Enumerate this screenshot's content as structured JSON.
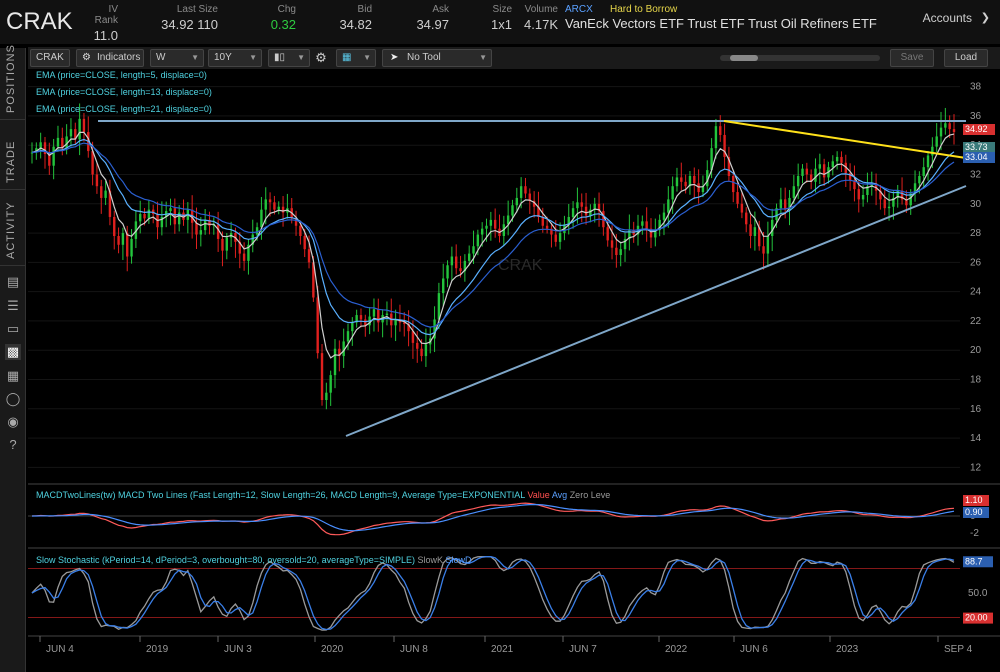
{
  "quote": {
    "symbol": "CRAK",
    "fields": [
      {
        "label": "IV Rank",
        "value": "11.0"
      },
      {
        "label": "Last Size",
        "value": "34.92 110"
      },
      {
        "label": "Chg",
        "value": "0.32"
      },
      {
        "label": "Bid",
        "value": "34.82"
      },
      {
        "label": "Ask",
        "value": "34.97"
      },
      {
        "label": "Size",
        "value": "1x1"
      },
      {
        "label": "Volume",
        "value": "4.17K"
      }
    ],
    "exchange": "ARCX",
    "borrow_status": "Hard to Borrow",
    "description": "VanEck Vectors ETF Trust ETF Trust Oil Refiners ETF",
    "accounts_label": "Accounts"
  },
  "sidebar": {
    "tabs": [
      "POSITIONS",
      "TRADE",
      "ACTIVITY"
    ],
    "icons": [
      "doc-icon",
      "list-icon",
      "tv-icon",
      "chart-icon",
      "grid-icon",
      "gauge-icon",
      "globe-icon",
      "help-icon"
    ]
  },
  "toolbar": {
    "symbol": "CRAK",
    "indicators_label": "Indicators",
    "aggregation": "W",
    "range": "10Y",
    "tool": "No Tool",
    "save_label": "Save",
    "load_label": "Load"
  },
  "studies": {
    "ema": [
      "EMA (price=CLOSE, length=5, displace=0)",
      "EMA (price=CLOSE, length=13, displace=0)",
      "EMA (price=CLOSE, length=21, displace=0)"
    ],
    "macd_title": "MACDTwoLines(tw) MACD Two Lines (Fast Length=12, Slow Length=26, MACD Length=9, Average Type=EXPONENTIAL",
    "macd_value": "Value",
    "macd_avg": "Avg",
    "macd_zero": "Zero Leve",
    "stoch_title": "Slow Stochastic (kPeriod=14, dPeriod=3, overbought=80, oversold=20, averageType=SIMPLE)",
    "stoch_k": "SlowK",
    "stoch_d": "SlowD",
    "watermark": "CRAK"
  },
  "chart_data": {
    "type": "line",
    "price_axis": {
      "ticks": [
        12,
        14,
        16,
        18,
        20,
        22,
        24,
        26,
        28,
        30,
        32,
        34,
        36,
        38
      ],
      "ylim": [
        11,
        39
      ]
    },
    "price_badges": [
      {
        "value": "34.92",
        "color": "#d83030"
      },
      {
        "value": "33.73",
        "color": "#3a7a7a"
      },
      {
        "value": "33.04",
        "color": "#2b5fb0"
      }
    ],
    "macd_axis": {
      "ticks": [
        "0",
        "-2"
      ]
    },
    "macd_badges": [
      {
        "value": "1.10",
        "color": "#d83030"
      },
      {
        "value": "0.90",
        "color": "#2b5fb0"
      }
    ],
    "stoch_axis": {
      "ticks": [
        "50.0"
      ]
    },
    "stoch_badges": [
      {
        "value": "88.7",
        "color": "#2b5fb0"
      },
      {
        "value": "20.00",
        "color": "#d83030"
      }
    ],
    "x_labels": [
      "JUN 4",
      "2019",
      "JUN 3",
      "2020",
      "JUN 8",
      "2021",
      "JUN 7",
      "2022",
      "JUN 6",
      "2023",
      "SEP 4"
    ],
    "weekly_close": [
      33.5,
      33.8,
      34.2,
      33.4,
      32.6,
      33.9,
      34.5,
      33.8,
      34.6,
      35.1,
      34.4,
      35.8,
      34.9,
      33.6,
      32.0,
      31.2,
      30.4,
      30.9,
      29.1,
      27.8,
      27.2,
      28.0,
      26.4,
      27.6,
      28.8,
      29.3,
      29.0,
      29.6,
      29.3,
      28.4,
      29.1,
      29.5,
      29.7,
      28.6,
      29.4,
      28.9,
      29.6,
      28.7,
      27.9,
      28.2,
      28.9,
      28.5,
      28.6,
      27.6,
      26.8,
      27.7,
      28.0,
      27.4,
      26.6,
      26.1,
      27.2,
      27.9,
      28.4,
      29.6,
      30.3,
      30.1,
      29.6,
      29.8,
      29.4,
      29.7,
      29.0,
      28.5,
      27.8,
      26.9,
      26.0,
      23.6,
      19.8,
      16.6,
      17.1,
      18.3,
      20.1,
      19.6,
      20.6,
      21.3,
      21.9,
      22.4,
      22.1,
      21.7,
      22.3,
      22.8,
      21.9,
      22.4,
      22.5,
      21.7,
      22.1,
      21.9,
      21.8,
      21.3,
      20.5,
      20.1,
      19.6,
      20.4,
      20.8,
      22.1,
      23.9,
      24.9,
      25.8,
      26.4,
      25.6,
      25.4,
      26.1,
      26.6,
      27.1,
      27.9,
      28.3,
      28.5,
      28.9,
      28.3,
      27.8,
      28.6,
      29.2,
      29.9,
      30.4,
      31.2,
      30.7,
      30.2,
      29.8,
      29.1,
      28.5,
      28.3,
      27.9,
      27.4,
      28.0,
      28.6,
      29.1,
      29.7,
      30.1,
      29.8,
      29.2,
      29.6,
      30.0,
      29.5,
      28.4,
      27.5,
      27.0,
      26.5,
      26.9,
      27.6,
      28.2,
      27.9,
      28.5,
      28.8,
      28.3,
      27.7,
      28.2,
      28.9,
      29.4,
      30.3,
      31.2,
      31.8,
      31.5,
      31.2,
      31.9,
      31.4,
      30.8,
      31.2,
      32.3,
      33.8,
      35.3,
      34.7,
      33.2,
      31.9,
      30.8,
      30.0,
      29.4,
      28.6,
      27.8,
      28.4,
      27.1,
      26.6,
      27.8,
      28.9,
      29.7,
      30.3,
      29.6,
      30.4,
      31.2,
      31.9,
      32.4,
      32.0,
      31.5,
      32.4,
      32.7,
      31.8,
      32.5,
      32.9,
      33.2,
      32.8,
      32.1,
      31.6,
      31.0,
      30.3,
      30.6,
      31.2,
      31.4,
      30.9,
      30.3,
      29.7,
      29.8,
      30.4,
      30.9,
      30.3,
      29.9,
      30.7,
      31.4,
      31.9,
      32.5,
      33.3,
      33.9,
      34.6,
      35.2,
      35.5,
      35.1,
      34.9
    ],
    "macd_zero_y": 0
  }
}
